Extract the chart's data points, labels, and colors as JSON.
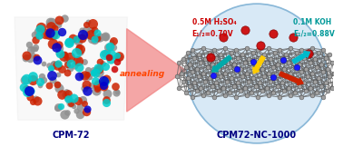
{
  "bg_color": "#ffffff",
  "title": "",
  "left_label": "CPM-72",
  "right_label": "CPM72-NC-1000",
  "annealing_text": "annealing",
  "acid_line1": "0.5M H₂SO₄",
  "acid_line2": "E₁/₂=0.79V",
  "base_line1": "0.1M KOH",
  "base_line2": "E₁/₂=0.88V",
  "acid_color": "#cc0000",
  "base_color": "#009999",
  "annealing_color": "#ff4400",
  "label_color": "#000080",
  "circle_color": "#b8d8f0",
  "circle_edge": "#8ab8d8",
  "arrow_triangle_color": "#cc3300",
  "graphene_color": "#a0a0a0",
  "graphene_edge": "#606060",
  "nitrogen_color": "#1a1aff",
  "oxygen_color": "#cc0000",
  "mof_gray": "#909090",
  "mof_red": "#cc2200",
  "mof_cyan": "#00cccc",
  "mof_blue": "#0000cc",
  "fig_width": 3.78,
  "fig_height": 1.62,
  "dpi": 100
}
